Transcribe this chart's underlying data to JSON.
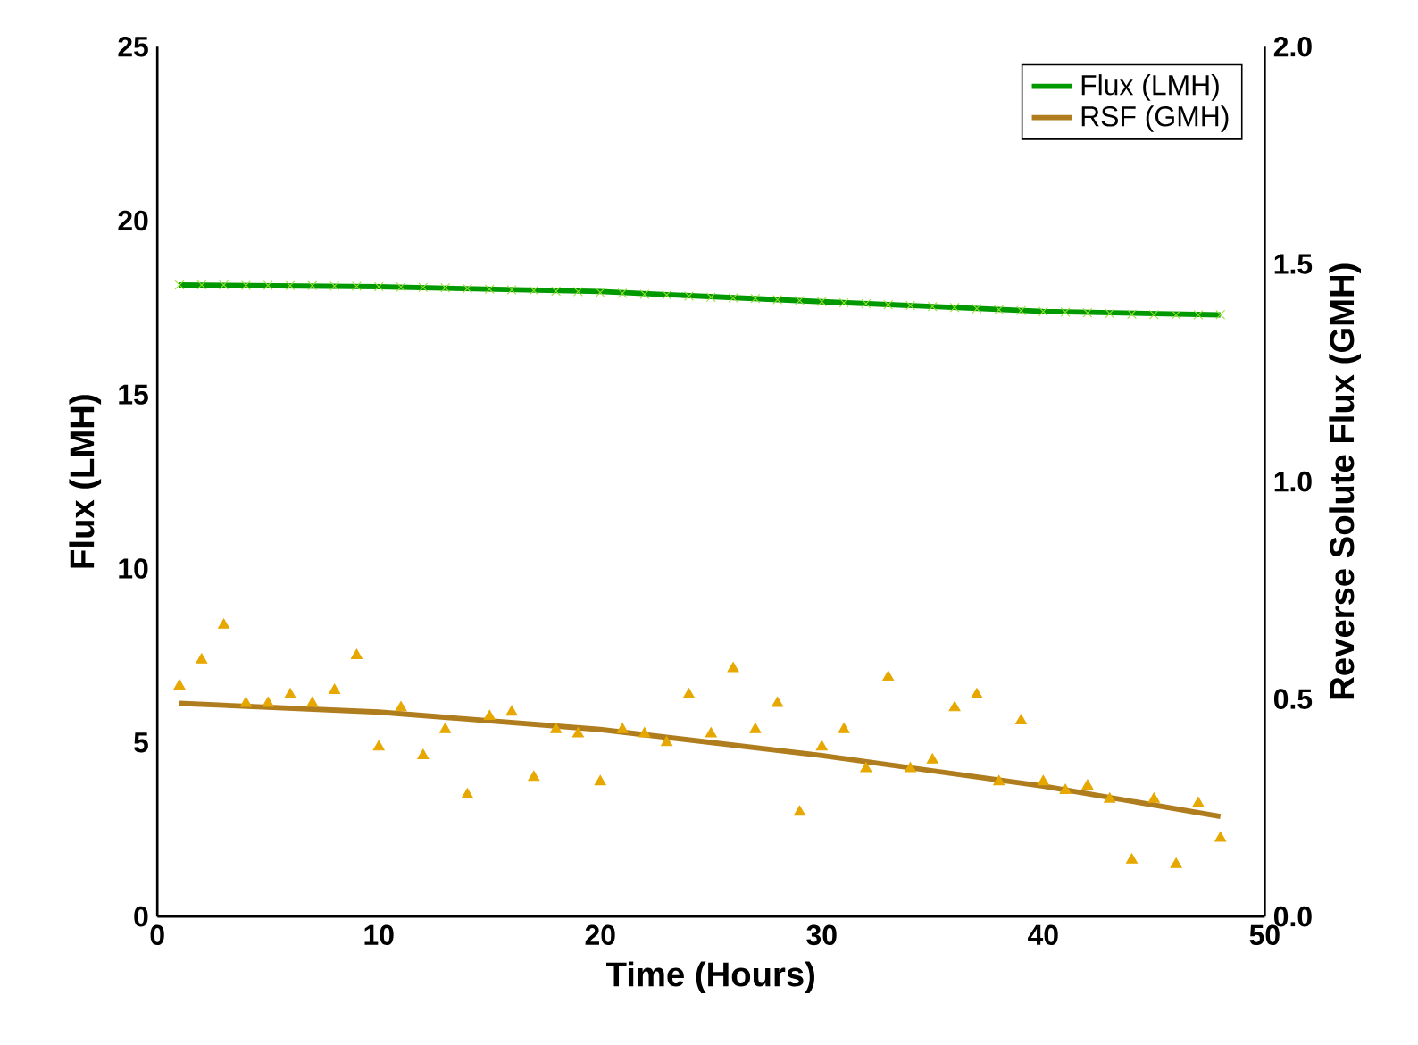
{
  "chart_data": {
    "type": "scatter",
    "xlabel": "Time (Hours)",
    "ylabel": "Flux (LMH)",
    "y2label": "Reverse Solute Flux (GMH)",
    "xlim": [
      0,
      50
    ],
    "xticks": [
      0,
      10,
      20,
      30,
      40,
      50
    ],
    "ylim": [
      0,
      25
    ],
    "yticks": [
      0,
      5,
      10,
      15,
      20,
      25
    ],
    "y2lim": [
      0,
      2
    ],
    "y2ticks": [
      {
        "value": 0,
        "label": "0.0"
      },
      0.5,
      {
        "value": 1,
        "label": "1.0"
      },
      1.5,
      {
        "value": 2,
        "label": "2.0"
      }
    ],
    "legend": "top right",
    "grid": false,
    "series": [
      {
        "marker": "cross",
        "color": "#99e033",
        "x": [
          1,
          2,
          3,
          4,
          5,
          6,
          7,
          8,
          9,
          10,
          11,
          12,
          13,
          14,
          15,
          16,
          17,
          18,
          19,
          20,
          21,
          22,
          23,
          24,
          25,
          26,
          27,
          28,
          29,
          30,
          31,
          32,
          33,
          34,
          35,
          36,
          37,
          38,
          39,
          40,
          41,
          42,
          43,
          44,
          45,
          46,
          47,
          48
        ],
        "values": [
          18.15,
          18.15,
          18.15,
          18.14,
          18.14,
          18.13,
          18.13,
          18.12,
          18.11,
          18.1,
          18.09,
          18.08,
          18.07,
          18.05,
          18.03,
          18.01,
          17.99,
          17.97,
          17.96,
          17.93,
          17.91,
          17.88,
          17.86,
          17.83,
          17.8,
          17.78,
          17.76,
          17.73,
          17.7,
          17.67,
          17.64,
          17.61,
          17.58,
          17.56,
          17.53,
          17.5,
          17.47,
          17.44,
          17.41,
          17.39,
          17.37,
          17.35,
          17.33,
          17.31,
          17.3,
          17.29,
          17.29,
          17.3
        ]
      },
      {
        "type": "line",
        "name": "Flux (LMH)",
        "marker": "none",
        "color": "#009900",
        "x": [
          1,
          10,
          20,
          30,
          40,
          48
        ],
        "values": [
          18.15,
          18.1,
          17.96,
          17.67,
          17.39,
          17.29
        ]
      },
      {
        "axis": "y2",
        "marker": "triangle",
        "color": "#e6a800",
        "x": [
          1,
          2,
          3,
          4,
          5,
          6,
          7,
          8,
          9,
          10,
          11,
          12,
          13,
          14,
          15,
          16,
          17,
          18,
          19,
          20,
          21,
          22,
          23,
          24,
          25,
          26,
          27,
          28,
          29,
          30,
          31,
          32,
          33,
          34,
          35,
          36,
          37,
          38,
          39,
          40,
          41,
          42,
          43,
          44,
          45,
          46,
          47,
          48
        ],
        "values": [
          0.53,
          0.59,
          0.67,
          0.49,
          0.49,
          0.51,
          0.49,
          0.52,
          0.6,
          0.39,
          0.48,
          0.37,
          0.43,
          0.28,
          0.46,
          0.47,
          0.32,
          0.43,
          0.42,
          0.31,
          0.43,
          0.42,
          0.4,
          0.51,
          0.42,
          0.57,
          0.43,
          0.49,
          0.24,
          0.39,
          0.43,
          0.34,
          0.55,
          0.34,
          0.36,
          0.48,
          0.51,
          0.31,
          0.45,
          0.31,
          0.29,
          0.3,
          0.27,
          0.13,
          0.27,
          0.12,
          0.26,
          0.18
        ]
      },
      {
        "type": "line",
        "name": "RSF (GMH)",
        "axis": "y2",
        "marker": "none",
        "color": "#b07d1e",
        "x": [
          1,
          10,
          20,
          30,
          40,
          48
        ],
        "values": [
          0.49,
          0.47,
          0.43,
          0.37,
          0.3,
          0.23
        ]
      }
    ]
  }
}
